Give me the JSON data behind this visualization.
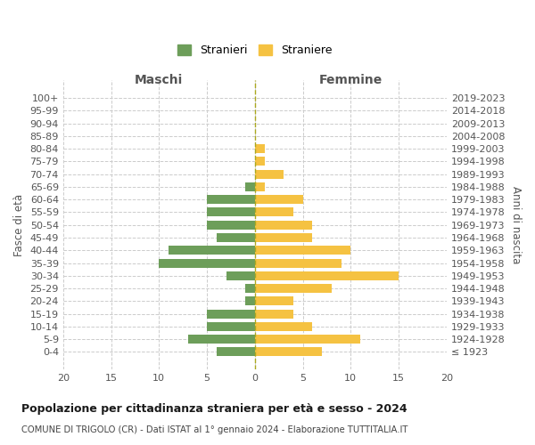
{
  "age_groups": [
    "100+",
    "95-99",
    "90-94",
    "85-89",
    "80-84",
    "75-79",
    "70-74",
    "65-69",
    "60-64",
    "55-59",
    "50-54",
    "45-49",
    "40-44",
    "35-39",
    "30-34",
    "25-29",
    "20-24",
    "15-19",
    "10-14",
    "5-9",
    "0-4"
  ],
  "birth_years": [
    "≤ 1923",
    "1924-1928",
    "1929-1933",
    "1934-1938",
    "1939-1943",
    "1944-1948",
    "1949-1953",
    "1954-1958",
    "1959-1963",
    "1964-1968",
    "1969-1973",
    "1974-1978",
    "1979-1983",
    "1984-1988",
    "1989-1993",
    "1994-1998",
    "1999-2003",
    "2004-2008",
    "2009-2013",
    "2014-2018",
    "2019-2023"
  ],
  "males": [
    0,
    0,
    0,
    0,
    0,
    0,
    0,
    1,
    5,
    5,
    5,
    4,
    9,
    10,
    3,
    1,
    1,
    5,
    5,
    7,
    4
  ],
  "females": [
    0,
    0,
    0,
    0,
    1,
    1,
    3,
    1,
    5,
    4,
    6,
    6,
    10,
    9,
    15,
    8,
    4,
    4,
    6,
    11,
    7
  ],
  "male_color": "#6d9e5a",
  "female_color": "#f5c242",
  "background_color": "#ffffff",
  "grid_color": "#cccccc",
  "title": "Popolazione per cittadinanza straniera per età e sesso - 2024",
  "subtitle": "COMUNE DI TRIGOLO (CR) - Dati ISTAT al 1° gennaio 2024 - Elaborazione TUTTITALIA.IT",
  "xlabel_left": "Maschi",
  "xlabel_right": "Femmine",
  "ylabel_left": "Fasce di età",
  "ylabel_right": "Anni di nascita",
  "legend_male": "Stranieri",
  "legend_female": "Straniere",
  "xlim": 20
}
